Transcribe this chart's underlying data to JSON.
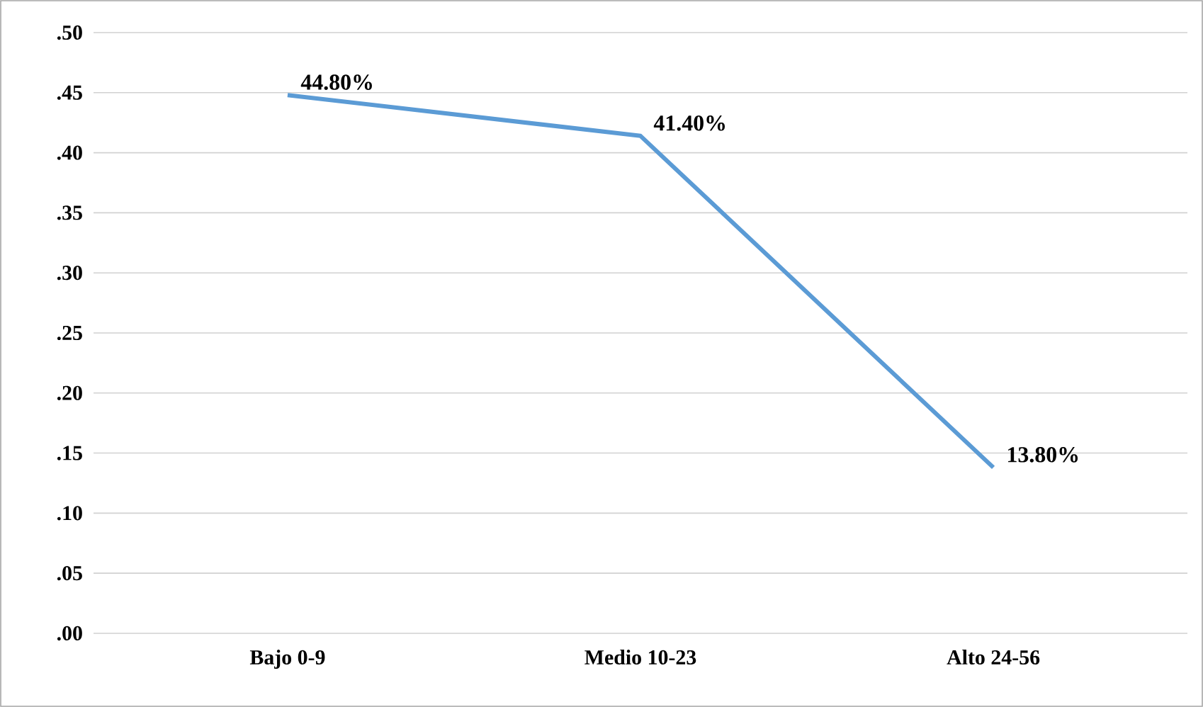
{
  "chart_data": {
    "type": "line",
    "categories": [
      "Bajo 0-9",
      "Medio 10-23",
      "Alto 24-56"
    ],
    "series": [
      {
        "color": "#5b9bd5",
        "values": [
          0.448,
          0.414,
          0.138
        ],
        "value_labels": [
          "44.80%",
          "41.40%",
          "13.80%"
        ]
      }
    ],
    "ylim": [
      0,
      0.5
    ],
    "yticks": [
      {
        "value": 0,
        "label": ".00"
      },
      {
        "value": 0.05,
        "label": ".05"
      },
      {
        "value": 0.1,
        "label": ".10"
      },
      {
        "value": 0.15,
        "label": ".15"
      },
      {
        "value": 0.2,
        "label": ".20"
      },
      {
        "value": 0.25,
        "label": ".25"
      },
      {
        "value": 0.3,
        "label": ".30"
      },
      {
        "value": 0.35,
        "label": ".35"
      },
      {
        "value": 0.4,
        "label": ".40"
      },
      {
        "value": 0.45,
        "label": ".45"
      },
      {
        "value": 0.5,
        "label": ".50"
      }
    ],
    "grid": "y",
    "marker": "none",
    "line_style": "solid"
  }
}
